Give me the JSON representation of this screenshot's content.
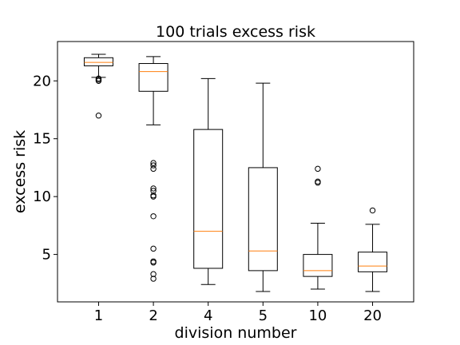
{
  "chart_data": {
    "type": "box",
    "title": "100 trials excess risk",
    "xlabel": "division number",
    "ylabel": "excess risk",
    "categories": [
      "1",
      "2",
      "4",
      "5",
      "10",
      "20"
    ],
    "y_ticks": [
      5,
      10,
      15,
      20
    ],
    "ylim": [
      0.9,
      23.4
    ],
    "grid": false,
    "boxes": [
      {
        "category": "1",
        "whisker_low": 20.3,
        "q1": 21.3,
        "median": 21.6,
        "q3": 22.0,
        "whisker_high": 22.3,
        "outliers": [
          20.0,
          20.1,
          20.2,
          17.0
        ]
      },
      {
        "category": "2",
        "whisker_low": 16.2,
        "q1": 19.1,
        "median": 20.8,
        "q3": 21.5,
        "whisker_high": 22.1,
        "outliers": [
          12.9,
          12.7,
          12.4,
          10.7,
          10.5,
          10.1,
          10.0,
          8.3,
          5.5,
          4.4,
          4.3,
          3.3,
          2.9
        ]
      },
      {
        "category": "4",
        "whisker_low": 2.4,
        "q1": 3.8,
        "median": 7.0,
        "q3": 15.8,
        "whisker_high": 20.2,
        "outliers": []
      },
      {
        "category": "5",
        "whisker_low": 1.8,
        "q1": 3.6,
        "median": 5.3,
        "q3": 12.5,
        "whisker_high": 19.8,
        "outliers": []
      },
      {
        "category": "10",
        "whisker_low": 2.0,
        "q1": 3.1,
        "median": 3.6,
        "q3": 5.0,
        "whisker_high": 7.7,
        "outliers": [
          12.4,
          11.3,
          11.2
        ]
      },
      {
        "category": "20",
        "whisker_low": 1.8,
        "q1": 3.5,
        "median": 4.0,
        "q3": 5.2,
        "whisker_high": 7.6,
        "outliers": [
          8.8
        ]
      }
    ],
    "colors": {
      "median": "#ff7f0e",
      "box": "#000000",
      "axes": "#000000"
    }
  }
}
